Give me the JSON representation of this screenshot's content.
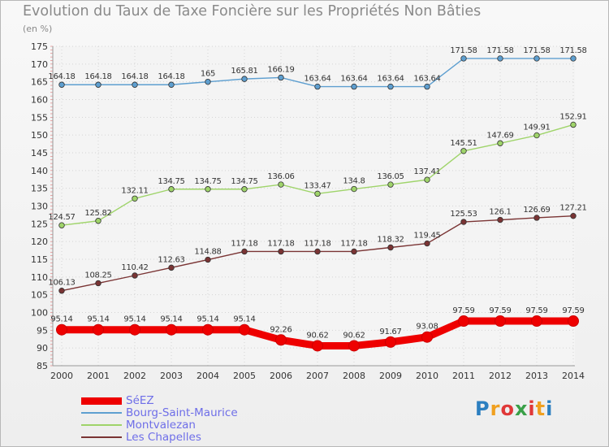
{
  "title": "Evolution du Taux de Taxe Foncière sur les Propriétés Non Bâties",
  "unit_label": "(en %)",
  "logo": {
    "text": "Proxiti",
    "letter_colors": [
      "#2c7fc0",
      "#f0a020",
      "#e03838",
      "#3aa048",
      "#e03838",
      "#f0a020",
      "#2c7fc0"
    ]
  },
  "chart_data": {
    "type": "line",
    "x": [
      "2000",
      "2001",
      "2002",
      "2003",
      "2004",
      "2005",
      "2006",
      "2007",
      "2008",
      "2009",
      "2010",
      "2011",
      "2012",
      "2013",
      "2014"
    ],
    "ylim": [
      85,
      175
    ],
    "yticks": [
      85,
      90,
      95,
      100,
      105,
      110,
      115,
      120,
      125,
      130,
      135,
      140,
      145,
      150,
      155,
      160,
      165,
      170,
      175
    ],
    "grid": true,
    "legend_position": "bottom-left",
    "series": [
      {
        "name": "SéEZ",
        "color": "#ee0000",
        "emphasized": true,
        "values": [
          95.14,
          95.14,
          95.14,
          95.14,
          95.14,
          95.14,
          92.26,
          90.62,
          90.62,
          91.67,
          93.08,
          97.59,
          97.59,
          97.59,
          97.59
        ],
        "labels": [
          "95.14",
          "95.14",
          "95.14",
          "95.14",
          "95.14",
          "95.14",
          "92.26",
          "90.62",
          "90.62",
          "91.67",
          "93.08",
          "97.59",
          "97.59",
          "97.59",
          "97.59"
        ]
      },
      {
        "name": "Bourg-Saint-Maurice",
        "color": "#5e9fd0",
        "emphasized": false,
        "values": [
          164.18,
          164.18,
          164.18,
          164.18,
          165,
          165.81,
          166.19,
          163.64,
          163.64,
          163.64,
          163.64,
          171.58,
          171.58,
          171.58,
          171.58
        ],
        "labels": [
          "164.18",
          "164.18",
          "164.18",
          "164.18",
          "165",
          "165.81",
          "166.19",
          "163.64",
          "163.64",
          "163.64",
          "163.64",
          "171.58",
          "171.58",
          "171.58",
          "171.58"
        ]
      },
      {
        "name": "Montvalezan",
        "color": "#9fd46a",
        "emphasized": false,
        "values": [
          124.57,
          125.82,
          132.11,
          134.75,
          134.75,
          134.75,
          136.06,
          133.47,
          134.8,
          136.05,
          137.41,
          145.51,
          147.69,
          149.91,
          152.91
        ],
        "labels": [
          "124.57",
          "125.82",
          "132.11",
          "134.75",
          "134.75",
          "134.75",
          "136.06",
          "133.47",
          "134.8",
          "136.05",
          "137.41",
          "145.51",
          "147.69",
          "149.91",
          "152.91"
        ]
      },
      {
        "name": "Les Chapelles",
        "color": "#7a3434",
        "emphasized": false,
        "values": [
          106.13,
          108.25,
          110.42,
          112.63,
          114.88,
          117.18,
          117.18,
          117.18,
          117.18,
          118.32,
          119.45,
          125.53,
          126.1,
          126.69,
          127.21
        ],
        "labels": [
          "106.13",
          "108.25",
          "110.42",
          "112.63",
          "114.88",
          "117.18",
          "117.18",
          "117.18",
          "117.18",
          "118.32",
          "119.45",
          "125.53",
          "126.1",
          "126.69",
          "127.21"
        ]
      }
    ]
  }
}
